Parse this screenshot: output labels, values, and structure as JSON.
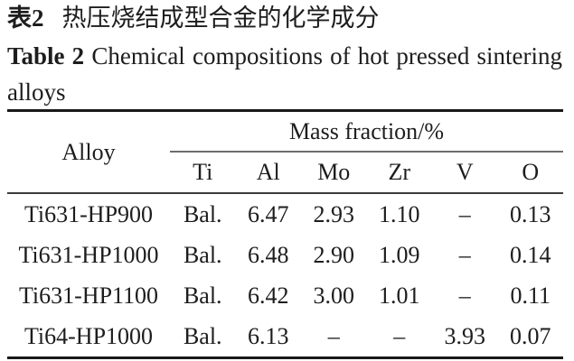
{
  "title": {
    "zh_label": "表2",
    "zh_text": "热压烧结成型合金的化学成分",
    "en_label": "Table 2",
    "en_text": "Chemical compositions of hot pressed sintering",
    "en_text_line2": "alloys"
  },
  "table": {
    "row_header": "Alloy",
    "group_header": "Mass fraction/%",
    "columns": [
      "Ti",
      "Al",
      "Mo",
      "Zr",
      "V",
      "O"
    ],
    "rows": [
      {
        "alloy": "Ti631-HP900",
        "values": [
          "Bal.",
          "6.47",
          "2.93",
          "1.10",
          "–",
          "0.13"
        ]
      },
      {
        "alloy": "Ti631-HP1000",
        "values": [
          "Bal.",
          "6.48",
          "2.90",
          "1.09",
          "–",
          "0.14"
        ]
      },
      {
        "alloy": "Ti631-HP1100",
        "values": [
          "Bal.",
          "6.42",
          "3.00",
          "1.01",
          "–",
          "0.11"
        ]
      },
      {
        "alloy": "Ti64-HP1000",
        "values": [
          "Bal.",
          "6.13",
          "–",
          "–",
          "3.93",
          "0.07"
        ]
      }
    ]
  },
  "colors": {
    "text": "#1d1d1d",
    "rule_heavy": "#191919",
    "rule_mid": "#3c3c3c",
    "rule_light": "#6e6e6e",
    "background": "#ffffff"
  }
}
